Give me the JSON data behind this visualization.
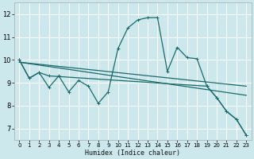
{
  "xlabel": "Humidex (Indice chaleur)",
  "bg_color": "#cce8ec",
  "grid_color": "#ffffff",
  "line_color": "#1a6b6b",
  "xlim": [
    -0.5,
    23.5
  ],
  "ylim": [
    6.5,
    12.5
  ],
  "yticks": [
    7,
    8,
    9,
    10,
    11,
    12
  ],
  "xticks": [
    0,
    1,
    2,
    3,
    4,
    5,
    6,
    7,
    8,
    9,
    10,
    11,
    12,
    13,
    14,
    15,
    16,
    17,
    18,
    19,
    20,
    21,
    22,
    23
  ],
  "curve_main": {
    "x": [
      0,
      1,
      2,
      3,
      4,
      5,
      6,
      7,
      8,
      9,
      10,
      11,
      12,
      13,
      14,
      15,
      16,
      17,
      18,
      19,
      20,
      21,
      22,
      23
    ],
    "y": [
      10.0,
      9.2,
      9.45,
      8.8,
      9.3,
      8.6,
      9.1,
      8.85,
      8.1,
      8.6,
      10.5,
      11.4,
      11.75,
      11.85,
      11.85,
      9.5,
      10.55,
      10.1,
      10.05,
      8.85,
      8.35,
      7.75,
      7.4,
      6.7
    ]
  },
  "curve_flat1": {
    "x": [
      0,
      23
    ],
    "y": [
      9.9,
      8.85
    ]
  },
  "curve_flat2": {
    "x": [
      0,
      23
    ],
    "y": [
      9.9,
      8.45
    ]
  },
  "curve_descend": {
    "x": [
      0,
      1,
      2,
      3,
      19,
      20,
      21,
      22,
      23
    ],
    "y": [
      10.0,
      9.2,
      9.45,
      9.3,
      8.85,
      8.35,
      7.75,
      7.4,
      6.7
    ]
  }
}
